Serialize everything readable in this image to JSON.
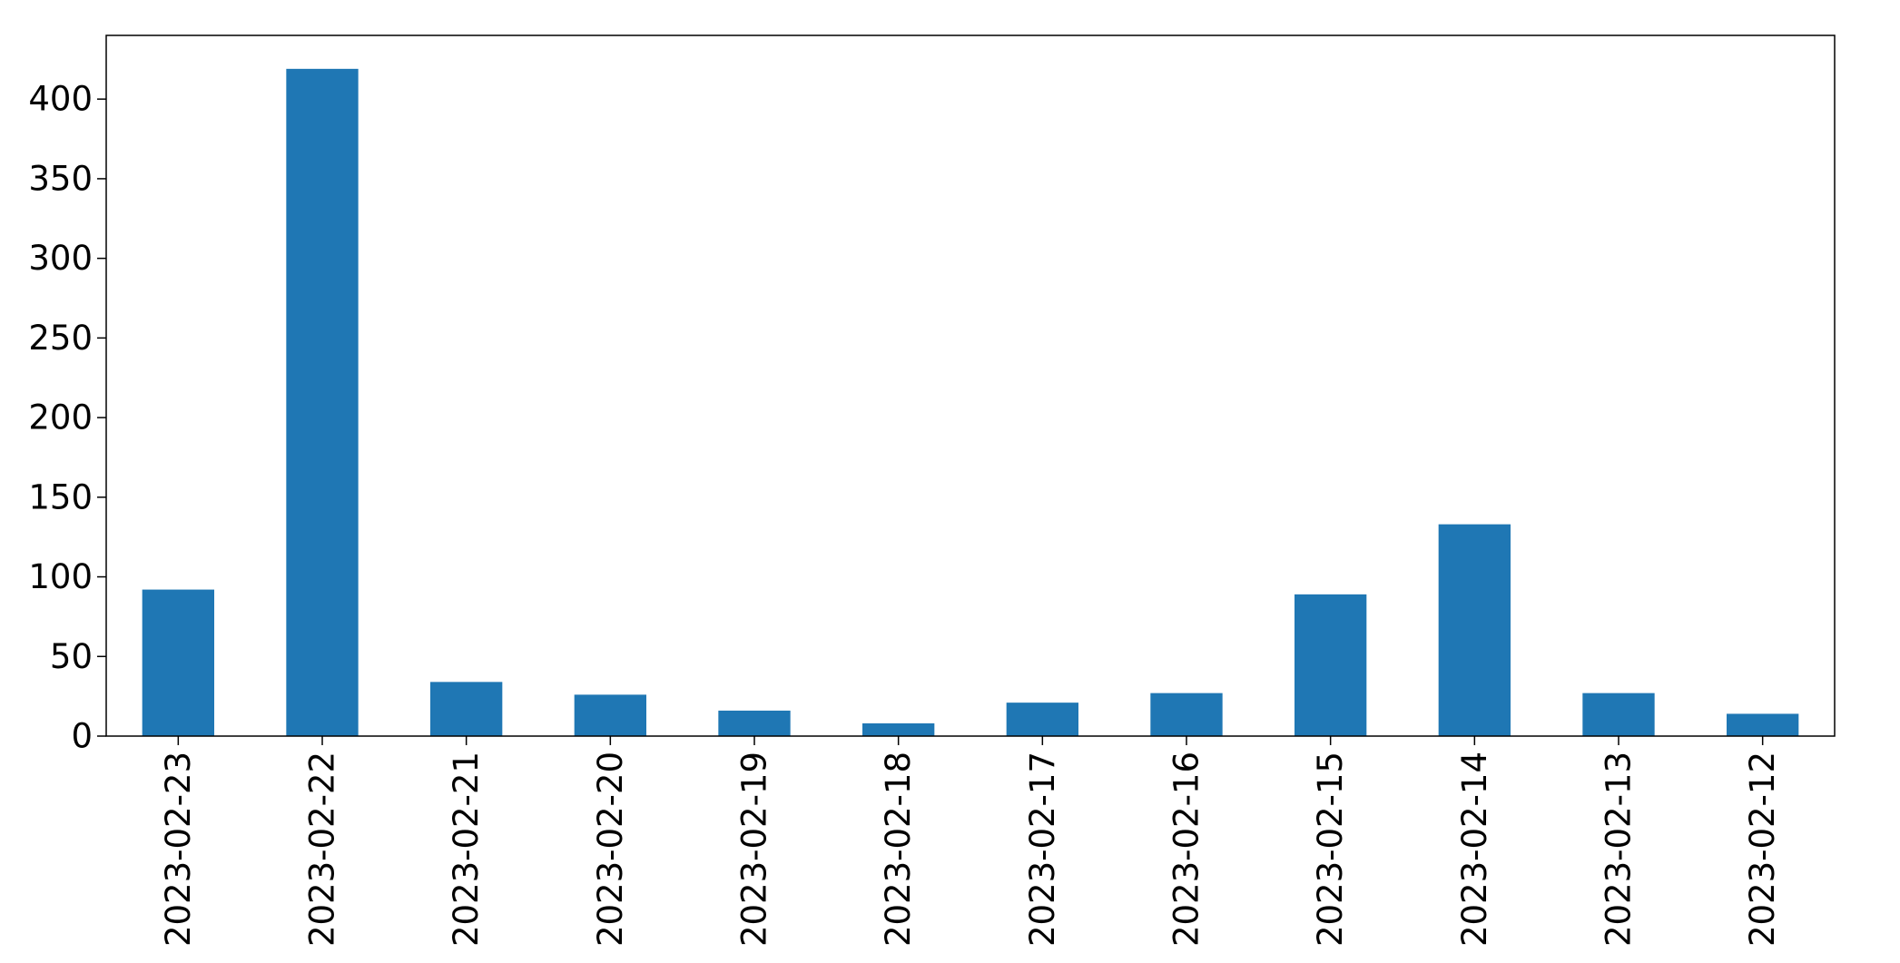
{
  "chart_data": {
    "type": "bar",
    "categories": [
      "2023-02-23",
      "2023-02-22",
      "2023-02-21",
      "2023-02-20",
      "2023-02-19",
      "2023-02-18",
      "2023-02-17",
      "2023-02-16",
      "2023-02-15",
      "2023-02-14",
      "2023-02-13",
      "2023-02-12"
    ],
    "values": [
      92,
      419,
      34,
      26,
      16,
      8,
      21,
      27,
      89,
      133,
      27,
      14
    ],
    "title": "",
    "xlabel": "",
    "ylabel": "",
    "ylim": [
      0,
      440
    ],
    "yticks": [
      0,
      50,
      100,
      150,
      200,
      250,
      300,
      350,
      400
    ],
    "grid": false,
    "legend": "none",
    "colors": {
      "bar": "#1f77b4",
      "axis": "#000000",
      "background": "#ffffff"
    }
  }
}
